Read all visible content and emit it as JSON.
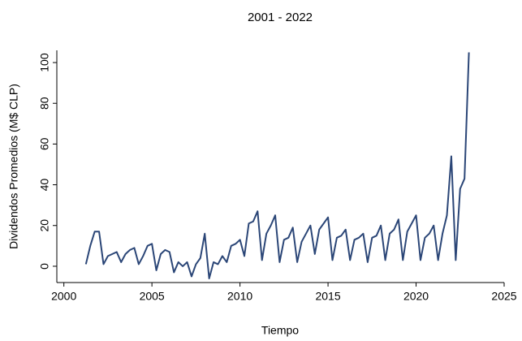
{
  "chart_data": {
    "type": "line",
    "title": "2001 - 2022",
    "x_label": "Tiempo",
    "y_label": "Dividendos Promedios (M$ CLP)",
    "x": [
      2001.25,
      2001.5,
      2001.75,
      2002,
      2002.25,
      2002.5,
      2002.75,
      2003,
      2003.25,
      2003.5,
      2003.75,
      2004,
      2004.25,
      2004.5,
      2004.75,
      2005,
      2005.25,
      2005.5,
      2005.75,
      2006,
      2006.25,
      2006.5,
      2006.75,
      2007,
      2007.25,
      2007.5,
      2007.75,
      2008,
      2008.25,
      2008.5,
      2008.75,
      2009,
      2009.25,
      2009.5,
      2009.75,
      2010,
      2010.25,
      2010.5,
      2010.75,
      2011,
      2011.25,
      2011.5,
      2011.75,
      2012,
      2012.25,
      2012.5,
      2012.75,
      2013,
      2013.25,
      2013.5,
      2013.75,
      2014,
      2014.25,
      2014.5,
      2014.75,
      2015,
      2015.25,
      2015.5,
      2015.75,
      2016,
      2016.25,
      2016.5,
      2016.75,
      2017,
      2017.25,
      2017.5,
      2017.75,
      2018,
      2018.25,
      2018.5,
      2018.75,
      2019,
      2019.25,
      2019.5,
      2019.75,
      2020,
      2020.25,
      2020.5,
      2020.75,
      2021,
      2021.25,
      2021.5,
      2021.75,
      2022,
      2022.25,
      2022.5,
      2022.75,
      2023
    ],
    "series": [
      {
        "color": "#2b4677",
        "values": [
          1,
          10,
          17,
          17,
          1,
          5,
          6,
          7,
          2,
          6,
          8,
          9,
          1,
          5,
          10,
          11,
          -2,
          6,
          8,
          7,
          -3,
          2,
          0,
          2,
          -5,
          1,
          4,
          16,
          -6,
          2,
          1,
          5,
          2,
          10,
          11,
          13,
          5,
          21,
          22,
          27,
          3,
          16,
          20,
          25,
          2,
          13,
          14,
          19,
          2,
          12,
          16,
          20,
          6,
          18,
          21,
          24,
          3,
          14,
          15,
          18,
          3,
          13,
          14,
          16,
          2,
          14,
          15,
          20,
          3,
          16,
          18,
          23,
          3,
          17,
          21,
          25,
          3,
          14,
          16,
          20,
          3,
          16,
          25,
          54,
          3,
          38,
          43,
          105
        ]
      }
    ],
    "xlim": [
      1999.6,
      2025
    ],
    "ylim": [
      -8,
      106
    ],
    "xticks": [
      2000,
      2005,
      2010,
      2015,
      2020,
      2025
    ],
    "yticks": [
      0,
      20,
      40,
      60,
      80,
      100
    ]
  }
}
